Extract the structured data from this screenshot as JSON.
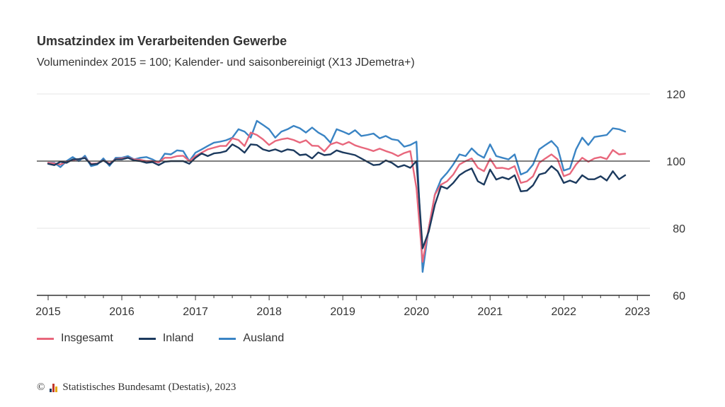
{
  "title": "Umsatzindex im Verarbeitenden Gewerbe",
  "subtitle": "Volumenindex 2015 = 100; Kalender- und saisonbereinigt (X13 JDemetra+)",
  "footer": {
    "copyright": "©",
    "text": "Statistisches Bundesamt (Destatis), 2023"
  },
  "colors": {
    "Insgesamt": "#e8677c",
    "Inland": "#1c3a5e",
    "Ausland": "#3a84c4",
    "reference": "#333333",
    "grid": "#e6e6e6"
  },
  "chart_data": {
    "type": "line",
    "x_start": "2015-01",
    "frequency": "monthly",
    "xticks": [
      "2015",
      "2016",
      "2017",
      "2018",
      "2019",
      "2020",
      "2021",
      "2022",
      "2023"
    ],
    "ylim": [
      60,
      120
    ],
    "yticks": [
      60,
      80,
      100,
      120
    ],
    "reference_line": 100,
    "grid": "horizontal",
    "legend_position": "bottom-left",
    "series": [
      {
        "name": "Insgesamt",
        "values": [
          99.5,
          99.3,
          99.0,
          99.8,
          100.3,
          100.6,
          101.0,
          99.2,
          99.3,
          100.2,
          99.3,
          100.6,
          100.8,
          101.0,
          100.5,
          100.4,
          100.0,
          100.0,
          99.6,
          101.0,
          101.0,
          101.5,
          101.6,
          100.0,
          101.5,
          102.5,
          103.5,
          104.0,
          104.5,
          104.5,
          106.8,
          106.3,
          104.5,
          108.5,
          107.8,
          106.5,
          104.8,
          106.0,
          106.5,
          106.8,
          106.3,
          105.5,
          106.2,
          104.6,
          104.5,
          102.9,
          105.0,
          105.6,
          104.9,
          105.7,
          104.7,
          104.1,
          103.6,
          103.0,
          103.7,
          103.0,
          102.4,
          101.5,
          102.4,
          103.0,
          92.0,
          70.0,
          80.0,
          90.0,
          93.0,
          94.0,
          96.0,
          99.0,
          100.0,
          100.8,
          98.0,
          97.0,
          100.7,
          97.9,
          98.0,
          97.6,
          98.5,
          93.5,
          94.0,
          95.5,
          99.5,
          100.8,
          102.0,
          100.5,
          95.5,
          96.2,
          99.0,
          101.0,
          99.8,
          100.8,
          101.2,
          100.6,
          103.3,
          102.0,
          102.2
        ]
      },
      {
        "name": "Inland",
        "values": [
          99.2,
          98.8,
          99.8,
          99.5,
          100.5,
          100.6,
          100.9,
          99.0,
          99.2,
          100.2,
          99.0,
          100.5,
          100.5,
          101.0,
          100.2,
          100.0,
          99.5,
          99.7,
          98.8,
          99.8,
          100.0,
          100.0,
          100.0,
          99.2,
          101.0,
          102.3,
          101.5,
          102.3,
          102.5,
          103.0,
          105.0,
          104.0,
          102.5,
          105.0,
          104.8,
          103.5,
          103.0,
          103.5,
          102.8,
          103.5,
          103.2,
          101.8,
          102.0,
          100.8,
          102.6,
          101.8,
          102.0,
          103.2,
          102.6,
          102.2,
          101.8,
          100.8,
          99.8,
          98.8,
          99.0,
          100.2,
          99.5,
          98.2,
          98.8,
          98.0,
          100.0,
          74.0,
          79.0,
          87.0,
          92.5,
          91.8,
          93.5,
          95.8,
          97.0,
          97.8,
          94.0,
          93.0,
          97.5,
          94.5,
          95.2,
          94.6,
          95.8,
          91.0,
          91.2,
          92.8,
          96.0,
          96.5,
          98.5,
          97.0,
          93.5,
          94.2,
          93.5,
          95.8,
          94.6,
          94.6,
          95.5,
          94.2,
          97.0,
          94.6,
          95.8
        ]
      },
      {
        "name": "Ausland",
        "values": [
          99.5,
          99.5,
          98.2,
          100.0,
          101.2,
          100.0,
          101.6,
          98.5,
          99.0,
          100.8,
          98.6,
          101.0,
          101.0,
          101.5,
          100.5,
          101.0,
          101.2,
          100.5,
          99.5,
          102.2,
          102.0,
          103.2,
          103.0,
          100.0,
          102.5,
          103.5,
          104.5,
          105.5,
          105.8,
          106.2,
          107.0,
          109.5,
          108.8,
          107.0,
          112.0,
          110.8,
          109.5,
          107.0,
          108.8,
          109.5,
          110.5,
          109.8,
          108.5,
          110.0,
          108.5,
          107.5,
          105.5,
          109.5,
          108.8,
          108.0,
          109.2,
          107.5,
          107.8,
          108.2,
          106.8,
          107.5,
          106.5,
          106.2,
          104.3,
          104.8,
          105.8,
          67.0,
          80.0,
          90.0,
          94.5,
          96.5,
          99.0,
          102.0,
          101.5,
          103.8,
          102.0,
          101.0,
          105.0,
          101.5,
          101.0,
          100.5,
          102.0,
          96.0,
          96.8,
          99.0,
          103.5,
          104.8,
          106.0,
          104.0,
          97.2,
          97.8,
          103.5,
          107.0,
          104.8,
          107.2,
          107.5,
          107.8,
          109.8,
          109.5,
          108.8
        ]
      }
    ]
  }
}
